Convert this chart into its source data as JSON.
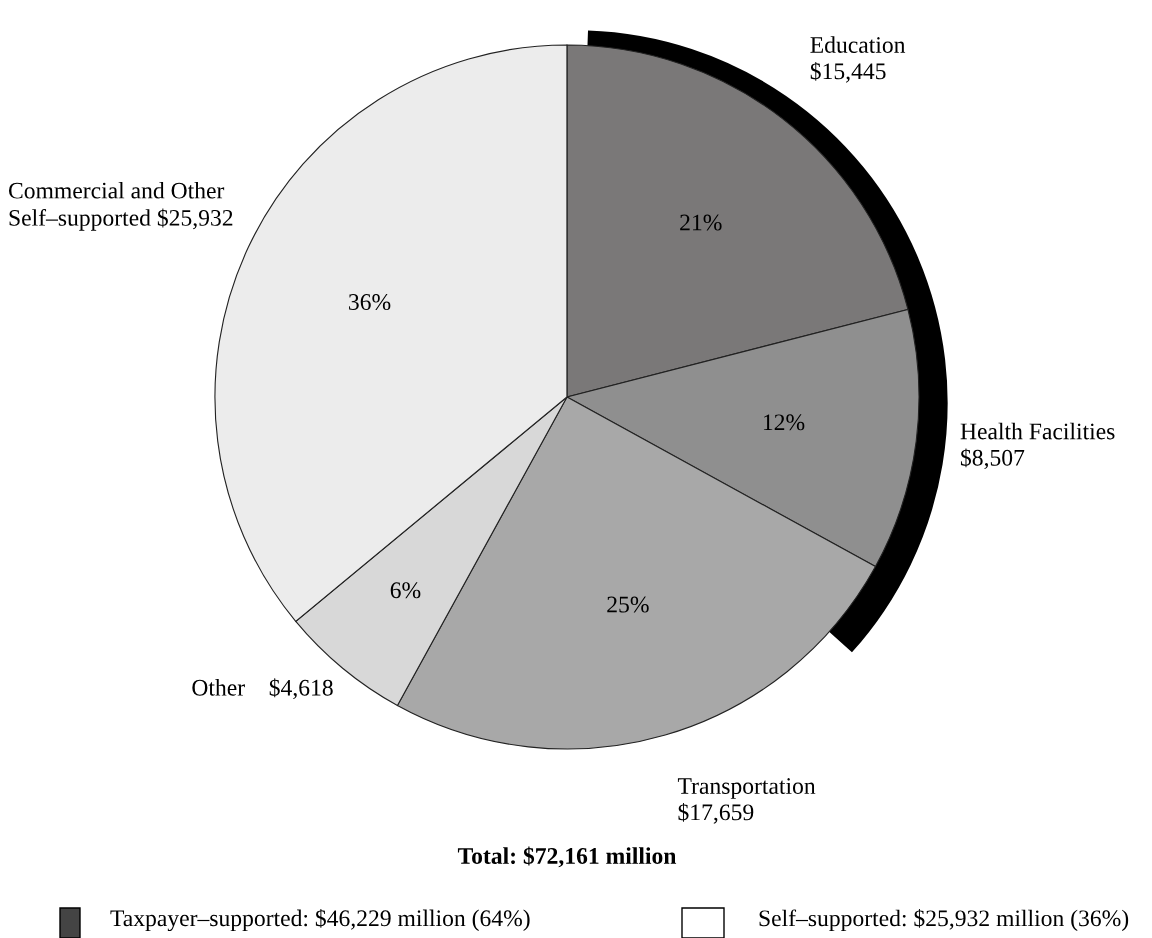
{
  "chart_data": {
    "type": "pie",
    "title": "Total: $72,161 million",
    "categories": [
      "Education\n$15,445",
      "Health Facilities\n$8,507",
      "Transportation\n$17,659",
      "Other    $4,618",
      "Commercial and Other\nSelf–supported $25,932"
    ],
    "values": [
      21,
      12,
      25,
      6,
      36
    ],
    "value_labels": [
      "21%",
      "12%",
      "25%",
      "6%",
      "36%"
    ],
    "colors": [
      "#7a7878",
      "#8f8f8f",
      "#a8a8a8",
      "#d8d8d8",
      "#ececec"
    ],
    "annotations": [
      "Taxpayer–supported: $46,229 million (64%)",
      "Self–supported: $25,932 million (36%)"
    ]
  }
}
